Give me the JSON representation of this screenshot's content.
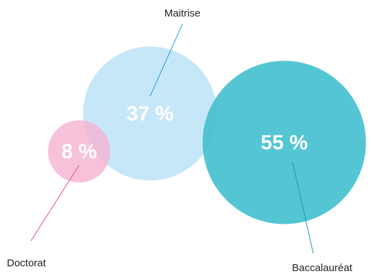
{
  "chart_data": {
    "type": "bubble",
    "categories": [
      "Doctorat",
      "Maitrise",
      "Baccalauréat"
    ],
    "values": [
      8,
      37,
      55
    ],
    "value_labels": [
      "8 %",
      "37 %",
      "55 %"
    ],
    "colors": [
      "#f5b3cf",
      "#c6e7f8",
      "#45c0cf"
    ]
  }
}
